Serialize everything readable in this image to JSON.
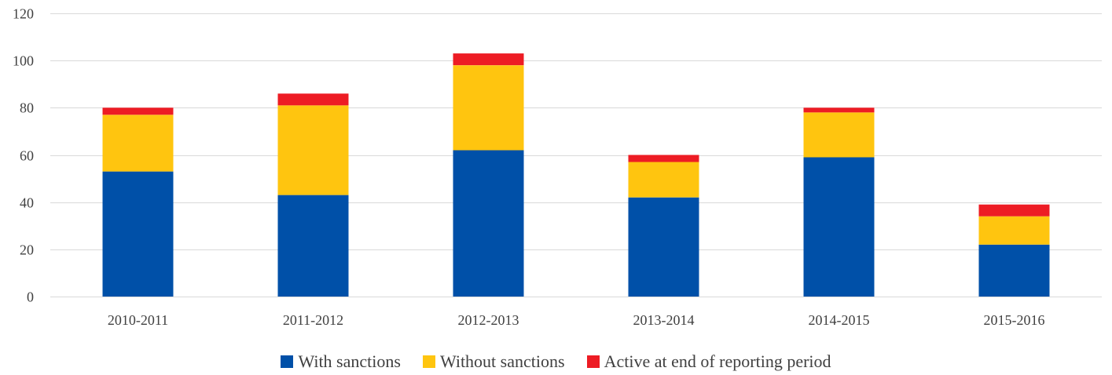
{
  "chart_data": {
    "type": "bar",
    "stacked": true,
    "categories": [
      "2010-2011",
      "2011-2012",
      "2012-2013",
      "2013-2014",
      "2014-2015",
      "2015-2016"
    ],
    "series": [
      {
        "name": "With sanctions",
        "color": "#0050A8",
        "values": [
          53,
          43,
          62,
          42,
          59,
          22
        ]
      },
      {
        "name": "Without sanctions",
        "color": "#FFC50F",
        "values": [
          24,
          38,
          36,
          15,
          19,
          12
        ]
      },
      {
        "name": "Active at end of reporting period",
        "color": "#ED1C24",
        "values": [
          3,
          5,
          5,
          3,
          2,
          5
        ]
      }
    ],
    "yticks": [
      "0",
      "20",
      "40",
      "60",
      "80",
      "100",
      "120"
    ],
    "ylim": [
      0,
      120
    ],
    "grid": true,
    "legend_position": "bottom",
    "title": "",
    "xlabel": "",
    "ylabel": ""
  }
}
